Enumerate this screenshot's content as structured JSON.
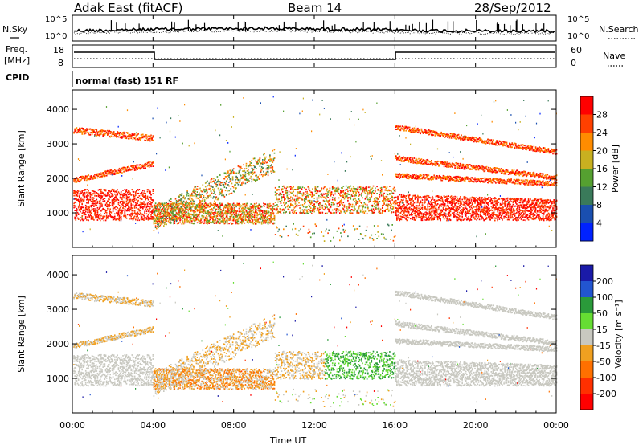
{
  "header": {
    "station": "Adak East (fitACF)",
    "beam": "Beam 14",
    "date": "28/Sep/2012"
  },
  "noise_panel": {
    "left_label": "N.Sky",
    "right_label": "N.Search",
    "tick_top": "10^5",
    "tick_bottom": "10^0"
  },
  "freq_panel": {
    "label_line1": "Freq.",
    "label_line2": "[MHz]",
    "left_ticks": [
      "18",
      "8"
    ],
    "right_ticks": [
      "60",
      "0"
    ],
    "right_label": "Nave"
  },
  "cpid": {
    "label": "CPID",
    "mode_text": "normal (fast) 151 RF"
  },
  "x_axis": {
    "label": "Time UT",
    "ticks": [
      "00:00",
      "04:00",
      "08:00",
      "12:00",
      "16:00",
      "20:00",
      "00:00"
    ]
  },
  "chart_data": [
    {
      "type": "heatmap",
      "name": "power",
      "ylabel": "Slant Range [km]",
      "y_ticks": [
        "1000",
        "2000",
        "3000",
        "4000"
      ],
      "colorbar_label": "Power [dB]",
      "colorbar_ticks": [
        "4",
        "8",
        "12",
        "16",
        "20",
        "24",
        "28"
      ],
      "colors": [
        "#0022ff",
        "#1a4fb0",
        "#3a7a5a",
        "#55a030",
        "#c8b020",
        "#ff8c00",
        "#ff4000",
        "#ff0000"
      ]
    },
    {
      "type": "heatmap",
      "name": "velocity",
      "ylabel": "Slant Range [km]",
      "y_ticks": [
        "1000",
        "2000",
        "3000",
        "4000"
      ],
      "colorbar_label": "Velocity [m s⁻¹]",
      "colorbar_ticks": [
        "200",
        "100",
        "50",
        "15",
        "-15",
        "-50",
        "-100",
        "-200"
      ],
      "colors": [
        "#1a1aa8",
        "#2255d0",
        "#2a9a3a",
        "#66dd33",
        "#c8c8c0",
        "#f0a020",
        "#ff7000",
        "#ff3000",
        "#ff0000"
      ]
    }
  ]
}
